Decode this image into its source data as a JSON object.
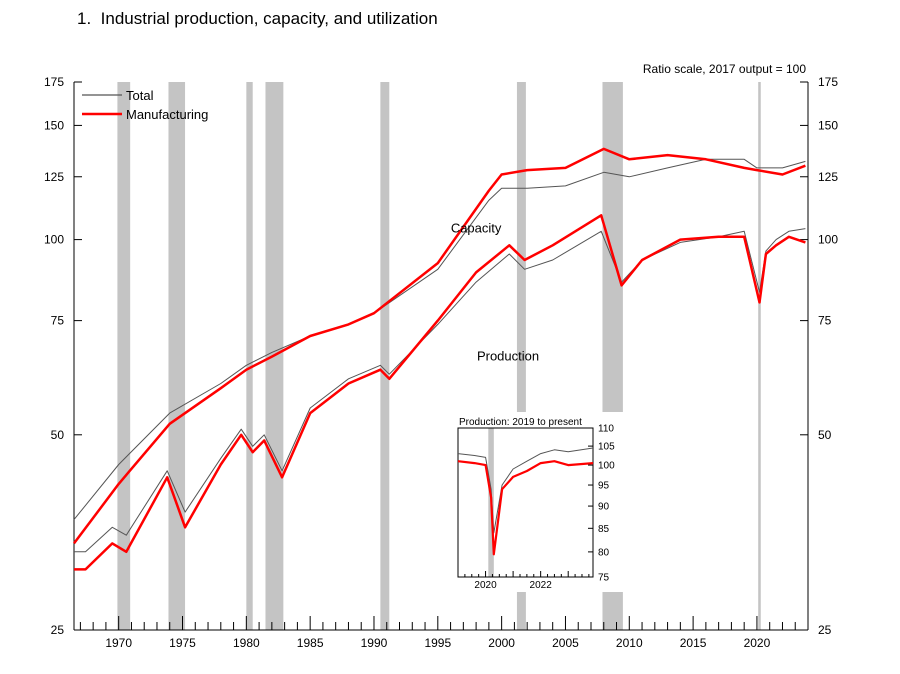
{
  "figure": {
    "number": "1.",
    "title": "Industrial production, capacity, and utilization"
  },
  "chart_data": [
    {
      "type": "line",
      "title": "1.  Industrial production, capacity, and utilization",
      "scale_note": "Ratio scale, 2017 output = 100",
      "scale": "log",
      "xlim": [
        1966.5,
        2024.0
      ],
      "ylim": [
        25,
        175
      ],
      "y_ticks": [
        25,
        50,
        75,
        100,
        125,
        150,
        175
      ],
      "x_ticks": [
        1970,
        1975,
        1980,
        1985,
        1990,
        1995,
        2000,
        2005,
        2010,
        2015,
        2020
      ],
      "legend": {
        "placement": "top-left",
        "entries": [
          "Total",
          "Manufacturing"
        ]
      },
      "annotations": [
        {
          "text": "Capacity",
          "x": 1998.0,
          "y": 104
        },
        {
          "text": "Production",
          "x": 2000.5,
          "y": 66
        }
      ],
      "recession_shading": [
        [
          1969.9,
          1970.9
        ],
        [
          1973.9,
          1975.2
        ],
        [
          1980.0,
          1980.5
        ],
        [
          1981.5,
          1982.9
        ],
        [
          1990.5,
          1991.2
        ],
        [
          2001.2,
          2001.9
        ],
        [
          2007.9,
          2009.5
        ],
        [
          2020.1,
          2020.3
        ]
      ],
      "colors": {
        "total": "#555555",
        "manufacturing": "#ff0000",
        "shading": "#c4c4c4"
      },
      "series": [
        {
          "name": "Total capacity",
          "color": "#555555",
          "x": [
            1966.5,
            1970,
            1974,
            1978,
            1980,
            1982,
            1985,
            1988,
            1990,
            1995,
            1999,
            2000,
            2002,
            2005,
            2008,
            2010,
            2013,
            2016,
            2019,
            2020,
            2022,
            2023.8
          ],
          "y": [
            37,
            45,
            54,
            60,
            64,
            67,
            71,
            74,
            77,
            90,
            115,
            120,
            120,
            121,
            127,
            125,
            129,
            133,
            133,
            129,
            129,
            132
          ]
        },
        {
          "name": "Manufacturing capacity",
          "color": "#ff0000",
          "x": [
            1966.5,
            1970,
            1974,
            1978,
            1980,
            1982,
            1985,
            1988,
            1990,
            1995,
            1999,
            2000,
            2002,
            2005,
            2008,
            2010,
            2013,
            2016,
            2019,
            2020,
            2022,
            2023.8
          ],
          "y": [
            34,
            42,
            52,
            59,
            63,
            66,
            71,
            74,
            77,
            92,
            119,
            126,
            128,
            129,
            138,
            133,
            135,
            133,
            129,
            128,
            126,
            130
          ]
        },
        {
          "name": "Total production",
          "color": "#555555",
          "x": [
            1966.5,
            1967.4,
            1969.5,
            1970.6,
            1973.8,
            1975.2,
            1978,
            1979.6,
            1980.5,
            1981.4,
            1982.8,
            1985,
            1988,
            1990.5,
            1991.2,
            1995,
            1998,
            2000.6,
            2001.8,
            2004,
            2007.8,
            2009.4,
            2011,
            2014,
            2017,
            2019,
            2020.2,
            2020.7,
            2021.5,
            2022.5,
            2023.8
          ],
          "y": [
            33,
            33,
            36,
            35,
            44,
            38,
            46,
            51,
            48,
            50,
            44,
            55,
            61,
            64,
            62,
            74,
            86,
            95,
            90,
            93,
            103,
            86,
            93,
            99,
            101,
            103,
            83,
            96,
            100,
            103,
            104
          ]
        },
        {
          "name": "Manufacturing production",
          "color": "#ff0000",
          "x": [
            1966.5,
            1967.4,
            1969.5,
            1970.6,
            1973.8,
            1975.2,
            1978,
            1979.6,
            1980.5,
            1981.4,
            1982.8,
            1985,
            1988,
            1990.5,
            1991.2,
            1995,
            1998,
            2000.6,
            2001.8,
            2004,
            2007.8,
            2009.4,
            2011,
            2014,
            2017,
            2019,
            2020.2,
            2020.7,
            2021.5,
            2022.5,
            2023.8
          ],
          "y": [
            31,
            31,
            34,
            33,
            43,
            36,
            45,
            50,
            47,
            49,
            43,
            54,
            60,
            63,
            61,
            75,
            89,
            98,
            93,
            98,
            109,
            85,
            93,
            100,
            101,
            101,
            80,
            95,
            98,
            101,
            99
          ]
        }
      ]
    },
    {
      "type": "line",
      "title": "Production: 2019 to present",
      "scale": "log",
      "xlim": [
        2019.0,
        2023.9
      ],
      "ylim": [
        75,
        110
      ],
      "y_ticks": [
        75,
        80,
        85,
        90,
        95,
        100,
        105,
        110
      ],
      "x_ticks": [
        2020,
        2022
      ],
      "legend": {
        "placement": "none",
        "entries": []
      },
      "recession_shading": [
        [
          2020.1,
          2020.3
        ]
      ],
      "series": [
        {
          "name": "Total production",
          "color": "#555555",
          "x": [
            2019.0,
            2019.6,
            2020.0,
            2020.2,
            2020.3,
            2020.6,
            2021.0,
            2021.5,
            2022.0,
            2022.5,
            2023.0,
            2023.9
          ],
          "y": [
            103,
            102.5,
            102,
            94,
            84,
            95,
            99,
            101,
            103,
            104,
            103.5,
            104.5
          ]
        },
        {
          "name": "Manufacturing production",
          "color": "#ff0000",
          "x": [
            2019.0,
            2019.6,
            2020.0,
            2020.2,
            2020.3,
            2020.6,
            2021.0,
            2021.5,
            2022.0,
            2022.5,
            2023.0,
            2023.9
          ],
          "y": [
            101,
            100.5,
            100,
            92,
            79.5,
            94,
            97,
            98.5,
            100.5,
            101,
            100,
            100.5
          ]
        }
      ]
    }
  ]
}
